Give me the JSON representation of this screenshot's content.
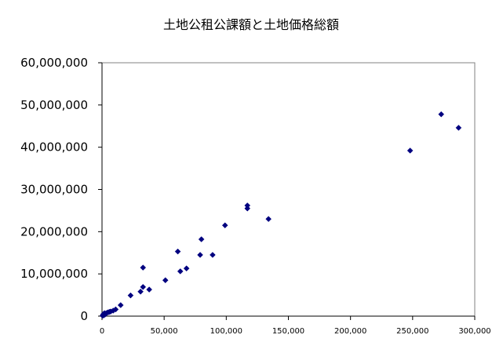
{
  "chart_data": {
    "type": "scatter",
    "title": "土地公租公課額と土地価格総額",
    "xlabel": "",
    "ylabel": "",
    "xlim": [
      0,
      300000
    ],
    "ylim": [
      0,
      60000000
    ],
    "grid": false,
    "legend": "none",
    "marker_color": "#000080",
    "x_ticks": [
      0,
      50000,
      100000,
      150000,
      200000,
      250000,
      300000
    ],
    "x_tick_labels": [
      "0",
      "50,000",
      "100,000",
      "150,000",
      "200,000",
      "250,000",
      "300,000"
    ],
    "y_ticks": [
      0,
      10000000,
      20000000,
      30000000,
      40000000,
      50000000,
      60000000
    ],
    "y_tick_labels": [
      "0",
      "10,000,000",
      "20,000,000",
      "30,000,000",
      "40,000,000",
      "50,000,000",
      "60,000,000"
    ],
    "series": [
      {
        "points": [
          [
            500,
            100000
          ],
          [
            800,
            300000
          ],
          [
            1200,
            500000
          ],
          [
            1500,
            200000
          ],
          [
            2000,
            700000
          ],
          [
            2500,
            400000
          ],
          [
            3000,
            600000
          ],
          [
            4000,
            800000
          ],
          [
            5000,
            900000
          ],
          [
            6000,
            1000000
          ],
          [
            7000,
            1100000
          ],
          [
            9000,
            1300000
          ],
          [
            11000,
            1600000
          ],
          [
            15000,
            2600000
          ],
          [
            23000,
            4900000
          ],
          [
            31000,
            5800000
          ],
          [
            33000,
            6900000
          ],
          [
            33000,
            11500000
          ],
          [
            38000,
            6300000
          ],
          [
            51000,
            8500000
          ],
          [
            61000,
            15300000
          ],
          [
            63000,
            10600000
          ],
          [
            68000,
            11300000
          ],
          [
            79000,
            14500000
          ],
          [
            80000,
            18200000
          ],
          [
            89000,
            14500000
          ],
          [
            99000,
            21500000
          ],
          [
            117000,
            26200000
          ],
          [
            117000,
            25500000
          ],
          [
            134000,
            23000000
          ],
          [
            248000,
            39200000
          ],
          [
            273000,
            47800000
          ],
          [
            287000,
            44600000
          ]
        ]
      }
    ]
  }
}
